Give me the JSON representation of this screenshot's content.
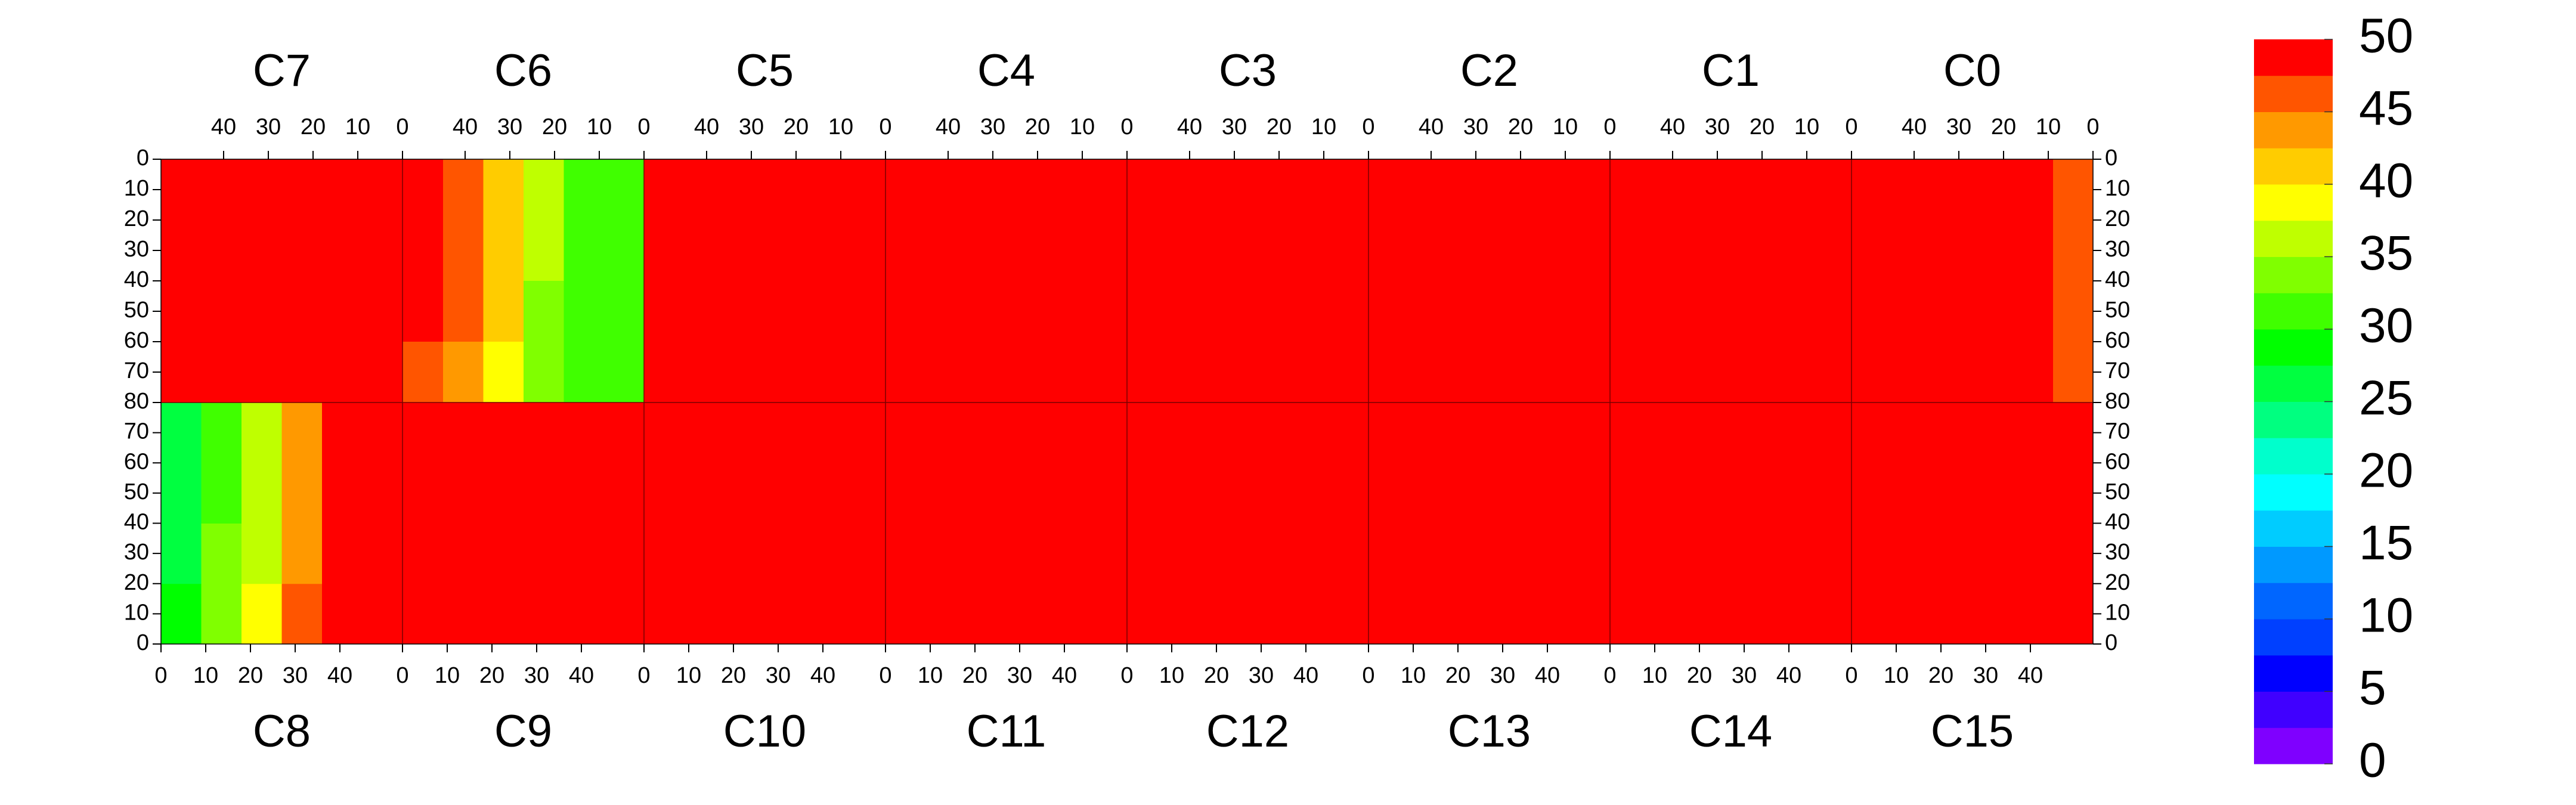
{
  "chart_data": {
    "type": "heatmap",
    "row_bins": [
      0,
      20,
      40,
      60,
      80
    ],
    "col_bins": [
      0,
      9,
      18,
      27,
      36,
      45,
      54
    ],
    "xlim": [
      0,
      54
    ],
    "ylim": [
      0,
      80
    ],
    "xticks": [
      0,
      10,
      20,
      30,
      40
    ],
    "yticks": [
      0,
      10,
      20,
      30,
      40,
      50,
      60,
      70,
      80
    ],
    "panels": [
      [
        {
          "name": "C7",
          "values": [
            [
              49,
              49,
              49,
              49,
              49,
              49
            ],
            [
              49,
              49,
              49,
              49,
              49,
              49
            ],
            [
              49,
              49,
              49,
              49,
              49,
              49
            ],
            [
              49,
              49,
              49,
              49,
              49,
              49
            ]
          ]
        },
        {
          "name": "C6",
          "values": [
            [
              30,
              31,
              36,
              42,
              47,
              49
            ],
            [
              30,
              31,
              35,
              41,
              46,
              49
            ],
            [
              30,
              30,
              34,
              40,
              45,
              48
            ],
            [
              30,
              30,
              33,
              38,
              44,
              47
            ]
          ]
        },
        {
          "name": "C5",
          "values": [
            [
              49,
              49,
              49,
              49,
              49,
              49
            ],
            [
              49,
              49,
              49,
              49,
              49,
              49
            ],
            [
              49,
              49,
              49,
              49,
              49,
              49
            ],
            [
              49,
              49,
              49,
              49,
              49,
              49
            ]
          ]
        },
        {
          "name": "C4",
          "values": [
            [
              49,
              49,
              49,
              49,
              49,
              49
            ],
            [
              49,
              49,
              49,
              49,
              49,
              49
            ],
            [
              49,
              49,
              49,
              49,
              49,
              49
            ],
            [
              49,
              49,
              49,
              49,
              49,
              49
            ]
          ]
        },
        {
          "name": "C3",
          "values": [
            [
              49,
              49,
              49,
              49,
              49,
              49
            ],
            [
              49,
              49,
              49,
              49,
              49,
              49
            ],
            [
              49,
              49,
              49,
              49,
              49,
              49
            ],
            [
              49,
              49,
              49,
              49,
              49,
              49
            ]
          ]
        },
        {
          "name": "C2",
          "values": [
            [
              49,
              49,
              49,
              49,
              49,
              49
            ],
            [
              49,
              49,
              49,
              49,
              49,
              49
            ],
            [
              49,
              49,
              49,
              49,
              49,
              49
            ],
            [
              49,
              49,
              49,
              49,
              49,
              49
            ]
          ]
        },
        {
          "name": "C1",
          "values": [
            [
              49,
              49,
              49,
              49,
              49,
              49
            ],
            [
              49,
              49,
              49,
              49,
              49,
              49
            ],
            [
              49,
              49,
              49,
              49,
              49,
              49
            ],
            [
              49,
              49,
              49,
              49,
              49,
              49
            ]
          ]
        },
        {
          "name": "C0",
          "values": [
            [
              45,
              49,
              49,
              49,
              49,
              49
            ],
            [
              45,
              49,
              49,
              49,
              49,
              49
            ],
            [
              45,
              49,
              49,
              49,
              49,
              49
            ],
            [
              45,
              49,
              49,
              49,
              49,
              49
            ]
          ]
        }
      ],
      [
        {
          "name": "C8",
          "values": [
            [
              28,
              33,
              38,
              45,
              49,
              49
            ],
            [
              27,
              33,
              37,
              44,
              49,
              49
            ],
            [
              27,
              32,
              37,
              44,
              49,
              49
            ],
            [
              27,
              32,
              36,
              43,
              49,
              49
            ]
          ]
        },
        {
          "name": "C9",
          "values": [
            [
              49,
              49,
              49,
              49,
              49,
              49
            ],
            [
              49,
              49,
              49,
              49,
              49,
              49
            ],
            [
              49,
              49,
              49,
              49,
              49,
              49
            ],
            [
              49,
              49,
              49,
              49,
              49,
              49
            ]
          ]
        },
        {
          "name": "C10",
          "values": [
            [
              49,
              49,
              49,
              49,
              49,
              49
            ],
            [
              49,
              49,
              49,
              49,
              49,
              49
            ],
            [
              49,
              49,
              49,
              49,
              49,
              49
            ],
            [
              49,
              49,
              49,
              49,
              49,
              49
            ]
          ]
        },
        {
          "name": "C11",
          "values": [
            [
              49,
              49,
              49,
              49,
              49,
              49
            ],
            [
              49,
              49,
              49,
              49,
              49,
              49
            ],
            [
              49,
              49,
              49,
              49,
              49,
              49
            ],
            [
              49,
              49,
              49,
              49,
              49,
              49
            ]
          ]
        },
        {
          "name": "C12",
          "values": [
            [
              49,
              49,
              49,
              49,
              49,
              49
            ],
            [
              49,
              49,
              49,
              49,
              49,
              49
            ],
            [
              49,
              49,
              49,
              49,
              49,
              49
            ],
            [
              49,
              49,
              49,
              49,
              49,
              49
            ]
          ]
        },
        {
          "name": "C13",
          "values": [
            [
              49,
              49,
              49,
              49,
              49,
              49
            ],
            [
              49,
              49,
              49,
              49,
              49,
              49
            ],
            [
              49,
              49,
              49,
              49,
              49,
              49
            ],
            [
              49,
              49,
              49,
              49,
              49,
              49
            ]
          ]
        },
        {
          "name": "C14",
          "values": [
            [
              49,
              49,
              49,
              49,
              49,
              49
            ],
            [
              49,
              49,
              49,
              49,
              49,
              49
            ],
            [
              49,
              49,
              49,
              49,
              49,
              49
            ],
            [
              49,
              49,
              49,
              49,
              49,
              49
            ]
          ]
        },
        {
          "name": "C15",
          "values": [
            [
              49,
              49,
              49,
              49,
              49,
              49
            ],
            [
              49,
              49,
              49,
              49,
              49,
              49
            ],
            [
              49,
              49,
              49,
              49,
              49,
              49
            ],
            [
              49,
              49,
              49,
              49,
              49,
              49
            ]
          ]
        }
      ]
    ],
    "colorbar": {
      "zlim": [
        0,
        50
      ],
      "zticks": [
        0,
        5,
        10,
        15,
        20,
        25,
        30,
        35,
        40,
        45,
        50
      ],
      "colors": [
        "#7f00ff",
        "#4000ff",
        "#0000ff",
        "#0040ff",
        "#0066ff",
        "#0099ff",
        "#00ccff",
        "#00ffff",
        "#00ffcc",
        "#00ff80",
        "#00ff40",
        "#00ff00",
        "#40ff00",
        "#80ff00",
        "#bfff00",
        "#ffff00",
        "#ffcc00",
        "#ff9900",
        "#ff5500",
        "#ff0000"
      ]
    }
  }
}
